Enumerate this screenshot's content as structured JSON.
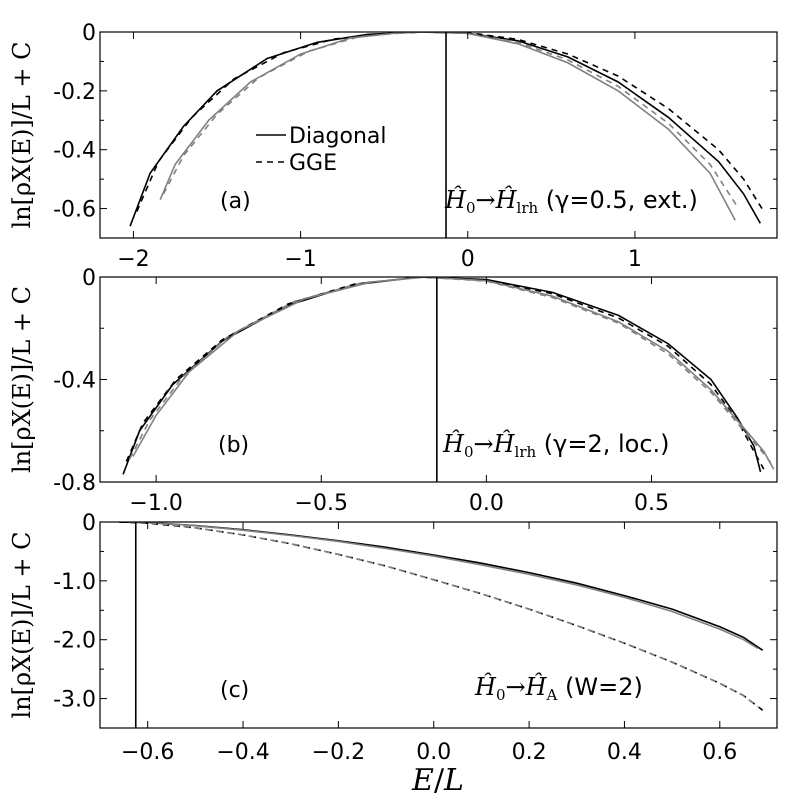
{
  "figure": {
    "xlabel_var": "E",
    "xlabel_den": "L"
  },
  "chart_data": [
    {
      "type": "line",
      "panel_label": "(a)",
      "ylabel": "ln[ρX(E)]/L + C",
      "annotation": {
        "H0": "Ĥ",
        "H0_sub": "0",
        "arrow": "→",
        "H1": "Ĥ",
        "H1_sub": "lrh",
        "args": " (γ=0.5, ext.)"
      },
      "xlim": [
        -2.2,
        1.85
      ],
      "ylim": [
        -0.7,
        0.0
      ],
      "xticks": [
        -2,
        -1,
        0,
        1
      ],
      "xtick_labels": [
        "−2",
        "−1",
        "0",
        "1"
      ],
      "yticks": [
        0,
        -0.2,
        -0.4,
        -0.6
      ],
      "ytick_labels": [
        "0",
        "-0.2",
        "-0.4",
        "-0.6"
      ],
      "vline_x": -0.13,
      "legend": {
        "position": "center-left",
        "entries": [
          {
            "label": "Diagonal",
            "style": "solid"
          },
          {
            "label": "GGE",
            "style": "dashed"
          }
        ]
      },
      "series": [
        {
          "color": "#000000",
          "dash": "none",
          "points": [
            [
              -2.02,
              -0.66
            ],
            [
              -1.9,
              -0.48
            ],
            [
              -1.7,
              -0.32
            ],
            [
              -1.5,
              -0.2
            ],
            [
              -1.2,
              -0.09
            ],
            [
              -0.9,
              -0.035
            ],
            [
              -0.6,
              -0.008
            ],
            [
              -0.3,
              0.0
            ],
            [
              0.0,
              -0.004
            ],
            [
              0.3,
              -0.03
            ],
            [
              0.6,
              -0.085
            ],
            [
              0.9,
              -0.17
            ],
            [
              1.2,
              -0.29
            ],
            [
              1.5,
              -0.44
            ],
            [
              1.65,
              -0.55
            ],
            [
              1.75,
              -0.65
            ]
          ]
        },
        {
          "color": "#000000",
          "dash": "6,5",
          "points": [
            [
              -1.98,
              -0.61
            ],
            [
              -1.85,
              -0.44
            ],
            [
              -1.65,
              -0.29
            ],
            [
              -1.4,
              -0.16
            ],
            [
              -1.1,
              -0.07
            ],
            [
              -0.8,
              -0.024
            ],
            [
              -0.5,
              -0.005
            ],
            [
              -0.25,
              0.0
            ],
            [
              0.0,
              -0.002
            ],
            [
              0.3,
              -0.025
            ],
            [
              0.6,
              -0.075
            ],
            [
              0.9,
              -0.15
            ],
            [
              1.2,
              -0.26
            ],
            [
              1.5,
              -0.4
            ],
            [
              1.65,
              -0.5
            ],
            [
              1.76,
              -0.6
            ]
          ]
        },
        {
          "color": "#808080",
          "dash": "none",
          "points": [
            [
              -1.84,
              -0.57
            ],
            [
              -1.75,
              -0.45
            ],
            [
              -1.55,
              -0.3
            ],
            [
              -1.3,
              -0.17
            ],
            [
              -1.0,
              -0.075
            ],
            [
              -0.7,
              -0.02
            ],
            [
              -0.4,
              -0.002
            ],
            [
              -0.2,
              0.0
            ],
            [
              0.0,
              -0.005
            ],
            [
              0.3,
              -0.04
            ],
            [
              0.6,
              -0.105
            ],
            [
              0.9,
              -0.2
            ],
            [
              1.2,
              -0.33
            ],
            [
              1.45,
              -0.48
            ],
            [
              1.6,
              -0.64
            ]
          ]
        },
        {
          "color": "#808080",
          "dash": "6,5",
          "points": [
            [
              -1.82,
              -0.55
            ],
            [
              -1.7,
              -0.42
            ],
            [
              -1.5,
              -0.28
            ],
            [
              -1.25,
              -0.155
            ],
            [
              -0.95,
              -0.065
            ],
            [
              -0.65,
              -0.016
            ],
            [
              -0.35,
              -0.001
            ],
            [
              -0.18,
              0.0
            ],
            [
              0.0,
              -0.004
            ],
            [
              0.3,
              -0.035
            ],
            [
              0.6,
              -0.095
            ],
            [
              0.9,
              -0.185
            ],
            [
              1.2,
              -0.31
            ],
            [
              1.45,
              -0.45
            ],
            [
              1.62,
              -0.6
            ]
          ]
        }
      ]
    },
    {
      "type": "line",
      "panel_label": "(b)",
      "ylabel": "ln[ρX(E)]/L + C",
      "annotation": {
        "H0": "Ĥ",
        "H0_sub": "0",
        "arrow": "→",
        "H1": "Ĥ",
        "H1_sub": "lrh",
        "args": " (γ=2, loc.)"
      },
      "xlim": [
        -1.17,
        0.88
      ],
      "ylim": [
        -0.8,
        0.0
      ],
      "xticks": [
        -1.0,
        -0.5,
        0.0,
        0.5
      ],
      "xtick_labels": [
        "−1.0",
        "−0.5",
        "0.0",
        "0.5"
      ],
      "yticks": [
        0,
        -0.4,
        -0.8
      ],
      "ytick_labels": [
        "0",
        "-0.4",
        "-0.8"
      ],
      "vline_x": -0.15,
      "series": [
        {
          "color": "#000000",
          "dash": "none",
          "points": [
            [
              -1.1,
              -0.77
            ],
            [
              -1.05,
              -0.6
            ],
            [
              -0.95,
              -0.42
            ],
            [
              -0.8,
              -0.25
            ],
            [
              -0.6,
              -0.11
            ],
            [
              -0.4,
              -0.03
            ],
            [
              -0.2,
              0.0
            ],
            [
              0.0,
              -0.01
            ],
            [
              0.2,
              -0.06
            ],
            [
              0.4,
              -0.15
            ],
            [
              0.55,
              -0.26
            ],
            [
              0.68,
              -0.4
            ],
            [
              0.76,
              -0.55
            ],
            [
              0.81,
              -0.66
            ],
            [
              0.83,
              -0.76
            ]
          ]
        },
        {
          "color": "#000000",
          "dash": "6,5",
          "points": [
            [
              -1.09,
              -0.72
            ],
            [
              -1.04,
              -0.57
            ],
            [
              -0.94,
              -0.4
            ],
            [
              -0.8,
              -0.245
            ],
            [
              -0.6,
              -0.105
            ],
            [
              -0.4,
              -0.028
            ],
            [
              -0.2,
              0.0
            ],
            [
              0.0,
              -0.012
            ],
            [
              0.2,
              -0.065
            ],
            [
              0.4,
              -0.16
            ],
            [
              0.55,
              -0.27
            ],
            [
              0.68,
              -0.42
            ],
            [
              0.76,
              -0.56
            ],
            [
              0.81,
              -0.68
            ],
            [
              0.84,
              -0.75
            ]
          ]
        },
        {
          "color": "#808080",
          "dash": "none",
          "points": [
            [
              -1.07,
              -0.7
            ],
            [
              -1.0,
              -0.54
            ],
            [
              -0.9,
              -0.37
            ],
            [
              -0.75,
              -0.21
            ],
            [
              -0.55,
              -0.085
            ],
            [
              -0.35,
              -0.02
            ],
            [
              -0.18,
              0.0
            ],
            [
              0.0,
              -0.015
            ],
            [
              0.2,
              -0.075
            ],
            [
              0.4,
              -0.175
            ],
            [
              0.55,
              -0.29
            ],
            [
              0.68,
              -0.44
            ],
            [
              0.78,
              -0.59
            ],
            [
              0.84,
              -0.68
            ],
            [
              0.87,
              -0.75
            ]
          ]
        },
        {
          "color": "#808080",
          "dash": "6,5",
          "points": [
            [
              -1.08,
              -0.71
            ],
            [
              -1.02,
              -0.56
            ],
            [
              -0.92,
              -0.39
            ],
            [
              -0.78,
              -0.23
            ],
            [
              -0.58,
              -0.095
            ],
            [
              -0.38,
              -0.024
            ],
            [
              -0.2,
              0.0
            ],
            [
              0.0,
              -0.016
            ],
            [
              0.2,
              -0.08
            ],
            [
              0.4,
              -0.18
            ],
            [
              0.55,
              -0.3
            ],
            [
              0.68,
              -0.45
            ],
            [
              0.78,
              -0.6
            ],
            [
              0.84,
              -0.69
            ],
            [
              0.87,
              -0.74
            ]
          ]
        }
      ]
    },
    {
      "type": "line",
      "panel_label": "(c)",
      "ylabel": "ln[ρX(E)]/L + C",
      "annotation": {
        "H0": "Ĥ",
        "H0_sub": "0",
        "arrow": "→",
        "H1": "Ĥ",
        "H1_sub": "A",
        "args": " (W=2)"
      },
      "xlim": [
        -0.7,
        0.72
      ],
      "ylim": [
        -3.5,
        0.0
      ],
      "xticks": [
        -0.6,
        -0.4,
        -0.2,
        0.0,
        0.2,
        0.4,
        0.6
      ],
      "xtick_labels": [
        "−0.6",
        "−0.4",
        "−0.2",
        "0.0",
        "0.2",
        "0.4",
        "0.6"
      ],
      "yticks": [
        0,
        -1.0,
        -2.0,
        -3.0
      ],
      "ytick_labels": [
        "0",
        "-1.0",
        "-2.0",
        "-3.0"
      ],
      "vline_x": -0.625,
      "series": [
        {
          "color": "#000000",
          "dash": "none",
          "points": [
            [
              -0.66,
              0.0
            ],
            [
              -0.6,
              -0.01
            ],
            [
              -0.5,
              -0.06
            ],
            [
              -0.4,
              -0.13
            ],
            [
              -0.3,
              -0.22
            ],
            [
              -0.2,
              -0.32
            ],
            [
              -0.1,
              -0.43
            ],
            [
              0.0,
              -0.56
            ],
            [
              0.1,
              -0.7
            ],
            [
              0.2,
              -0.86
            ],
            [
              0.3,
              -1.04
            ],
            [
              0.4,
              -1.25
            ],
            [
              0.5,
              -1.48
            ],
            [
              0.6,
              -1.78
            ],
            [
              0.65,
              -1.96
            ],
            [
              0.69,
              -2.18
            ]
          ]
        },
        {
          "color": "#808080",
          "dash": "none",
          "points": [
            [
              -0.64,
              0.0
            ],
            [
              -0.58,
              -0.015
            ],
            [
              -0.5,
              -0.065
            ],
            [
              -0.4,
              -0.14
            ],
            [
              -0.3,
              -0.23
            ],
            [
              -0.2,
              -0.33
            ],
            [
              -0.1,
              -0.45
            ],
            [
              0.0,
              -0.58
            ],
            [
              0.1,
              -0.73
            ],
            [
              0.2,
              -0.89
            ],
            [
              0.3,
              -1.07
            ],
            [
              0.4,
              -1.28
            ],
            [
              0.5,
              -1.52
            ],
            [
              0.6,
              -1.82
            ],
            [
              0.65,
              -2.0
            ],
            [
              0.68,
              -2.15
            ]
          ]
        },
        {
          "color": "#000000",
          "dash": "6,5",
          "points": [
            [
              -0.66,
              0.0
            ],
            [
              -0.6,
              -0.02
            ],
            [
              -0.5,
              -0.1
            ],
            [
              -0.4,
              -0.22
            ],
            [
              -0.3,
              -0.37
            ],
            [
              -0.2,
              -0.55
            ],
            [
              -0.1,
              -0.75
            ],
            [
              0.0,
              -0.98
            ],
            [
              0.1,
              -1.22
            ],
            [
              0.2,
              -1.48
            ],
            [
              0.3,
              -1.76
            ],
            [
              0.4,
              -2.06
            ],
            [
              0.5,
              -2.38
            ],
            [
              0.6,
              -2.74
            ],
            [
              0.65,
              -2.95
            ],
            [
              0.69,
              -3.2
            ]
          ]
        },
        {
          "color": "#808080",
          "dash": "6,5",
          "points": [
            [
              -0.64,
              0.0
            ],
            [
              -0.58,
              -0.025
            ],
            [
              -0.5,
              -0.1
            ],
            [
              -0.4,
              -0.22
            ],
            [
              -0.3,
              -0.37
            ],
            [
              -0.2,
              -0.55
            ],
            [
              -0.1,
              -0.75
            ],
            [
              0.0,
              -0.98
            ],
            [
              0.1,
              -1.22
            ],
            [
              0.2,
              -1.48
            ],
            [
              0.3,
              -1.76
            ],
            [
              0.4,
              -2.06
            ],
            [
              0.5,
              -2.38
            ],
            [
              0.6,
              -2.74
            ],
            [
              0.65,
              -2.95
            ],
            [
              0.68,
              -3.14
            ]
          ]
        }
      ]
    }
  ]
}
